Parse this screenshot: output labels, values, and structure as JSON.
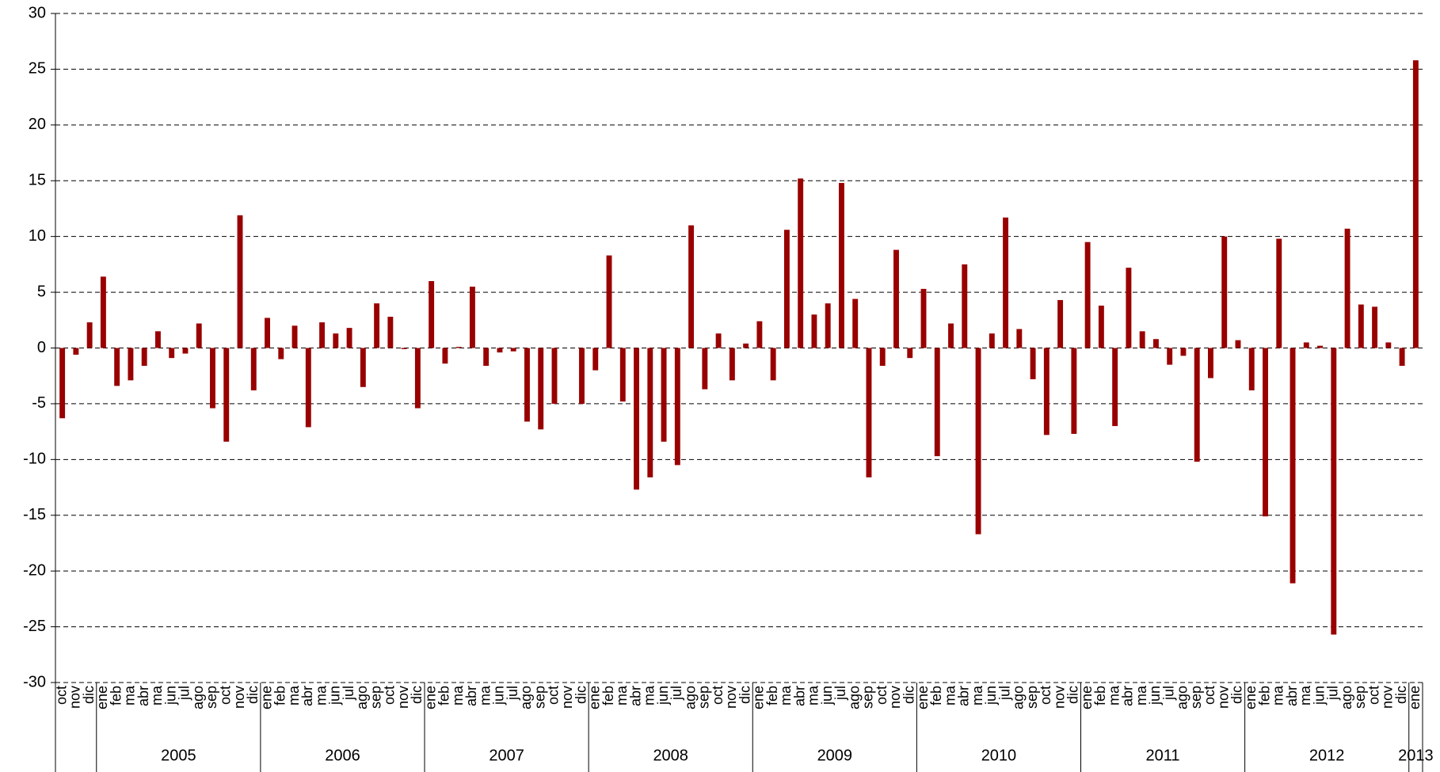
{
  "chart_data": {
    "type": "bar",
    "categories": [
      "oct",
      "nov",
      "dic",
      "ene",
      "feb",
      "ma",
      "abr",
      "ma",
      "jun",
      "jul",
      "ago",
      "sep",
      "oct",
      "nov",
      "dic",
      "ene",
      "feb",
      "ma",
      "abr",
      "ma",
      "jun",
      "jul",
      "ago",
      "sep",
      "oct",
      "nov",
      "dic",
      "ene",
      "feb",
      "ma",
      "abr",
      "ma",
      "jun",
      "jul",
      "ago",
      "sep",
      "oct",
      "nov",
      "dic",
      "ene",
      "feb",
      "ma",
      "abr",
      "ma",
      "jun",
      "jul",
      "ago",
      "sep",
      "oct",
      "nov",
      "dic",
      "ene",
      "feb",
      "ma",
      "abr",
      "ma",
      "jun",
      "jul",
      "ago",
      "sep",
      "oct",
      "nov",
      "dic",
      "ene",
      "feb",
      "ma",
      "abr",
      "ma",
      "jun",
      "jul",
      "ago",
      "sep",
      "oct",
      "nov",
      "dic",
      "ene",
      "feb",
      "ma",
      "abr",
      "ma",
      "jun",
      "jul",
      "ago",
      "sep",
      "oct",
      "nov",
      "dic",
      "ene",
      "feb",
      "ma",
      "abr",
      "ma",
      "jun",
      "jul",
      "ago",
      "sep",
      "oct",
      "nov",
      "dic",
      "ene"
    ],
    "years": [
      null,
      null,
      null,
      "2005",
      "2005",
      "2005",
      "2005",
      "2005",
      "2005",
      "2005",
      "2005",
      "2005",
      "2005",
      "2005",
      "2005",
      "2006",
      "2006",
      "2006",
      "2006",
      "2006",
      "2006",
      "2006",
      "2006",
      "2006",
      "2006",
      "2006",
      "2006",
      "2007",
      "2007",
      "2007",
      "2007",
      "2007",
      "2007",
      "2007",
      "2007",
      "2007",
      "2007",
      "2007",
      "2007",
      "2008",
      "2008",
      "2008",
      "2008",
      "2008",
      "2008",
      "2008",
      "2008",
      "2008",
      "2008",
      "2008",
      "2008",
      "2009",
      "2009",
      "2009",
      "2009",
      "2009",
      "2009",
      "2009",
      "2009",
      "2009",
      "2009",
      "2009",
      "2009",
      "2010",
      "2010",
      "2010",
      "2010",
      "2010",
      "2010",
      "2010",
      "2010",
      "2010",
      "2010",
      "2010",
      "2010",
      "2011",
      "2011",
      "2011",
      "2011",
      "2011",
      "2011",
      "2011",
      "2011",
      "2011",
      "2011",
      "2011",
      "2011",
      "2012",
      "2012",
      "2012",
      "2012",
      "2012",
      "2012",
      "2012",
      "2012",
      "2012",
      "2012",
      "2012",
      "2012",
      "2013"
    ],
    "values": [
      -6.3,
      -0.6,
      2.3,
      6.4,
      -3.4,
      -2.9,
      -1.6,
      1.5,
      -0.9,
      -0.5,
      2.2,
      -5.4,
      -8.4,
      11.9,
      -3.8,
      2.7,
      -1.0,
      2.0,
      -7.1,
      2.3,
      1.3,
      1.8,
      -3.5,
      4.0,
      2.8,
      -0.1,
      -5.4,
      6.0,
      -1.4,
      0.1,
      5.5,
      -1.6,
      -0.4,
      -0.3,
      -6.6,
      -7.3,
      -5.0,
      0,
      -5.0,
      -2.0,
      8.3,
      -4.8,
      -12.7,
      -11.6,
      -8.4,
      -10.5,
      11.0,
      -3.7,
      1.3,
      -2.9,
      0.4,
      2.4,
      -2.9,
      10.6,
      15.2,
      3.0,
      4.0,
      14.8,
      4.4,
      -11.6,
      -1.6,
      8.8,
      -0.9,
      5.3,
      -9.7,
      2.2,
      7.5,
      -16.7,
      1.3,
      11.7,
      1.7,
      -2.8,
      -7.8,
      4.3,
      -7.7,
      9.5,
      3.8,
      -7.0,
      7.2,
      1.5,
      0.8,
      -1.5,
      -0.7,
      -10.2,
      -2.7,
      10.0,
      0.7,
      -3.8,
      -15.1,
      9.8,
      -21.1,
      0.5,
      0.2,
      -25.7,
      10.7,
      3.9,
      3.7,
      0.5,
      -1.6,
      25.8
    ],
    "color": "#990000",
    "ylim": [
      -30,
      30
    ],
    "yticks": [
      -30,
      -25,
      -20,
      -15,
      -10,
      -5,
      0,
      5,
      10,
      15,
      20,
      25,
      30
    ],
    "grid": true
  }
}
